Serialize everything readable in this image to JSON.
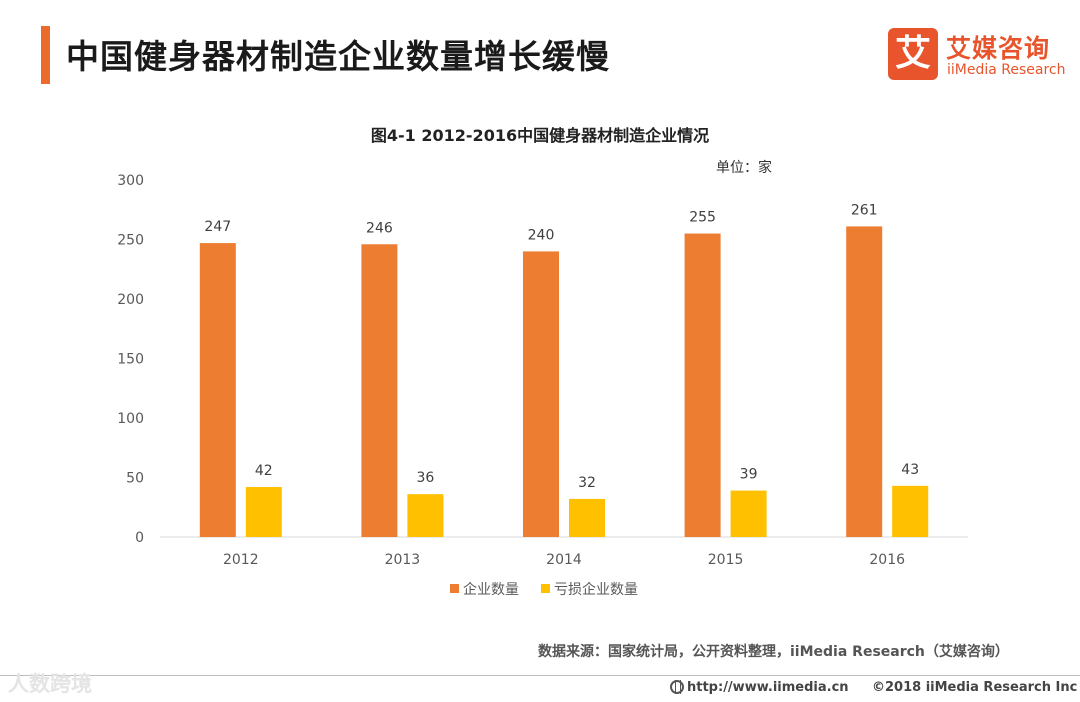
{
  "header": {
    "title": "中国健身器材制造企业数量增长缓慢"
  },
  "logo": {
    "glyph": "艾",
    "name_cn": "艾媒咨询",
    "name_en": "iiMedia Research"
  },
  "chart_data": {
    "type": "bar",
    "title": "图4-1 2012-2016中国健身器材制造企业情况",
    "unit": "单位：家",
    "categories": [
      "2012",
      "2013",
      "2014",
      "2015",
      "2016"
    ],
    "series": [
      {
        "name": "企业数量",
        "color": "#ed7d31",
        "values": [
          247,
          246,
          240,
          255,
          261
        ]
      },
      {
        "name": "亏损企业数量",
        "color": "#ffc000",
        "values": [
          42,
          36,
          32,
          39,
          43
        ]
      }
    ],
    "ylim": [
      0,
      300
    ],
    "yticks": [
      "0",
      "50",
      "100",
      "150",
      "200",
      "250",
      "300"
    ],
    "xlabel": "",
    "ylabel": "",
    "grid": false,
    "legend": "bottom"
  },
  "source": "数据来源：国家统计局，公开资料整理，iiMedia Research（艾媒咨询）",
  "footer": {
    "watermark": "人数跨境",
    "url": "http://www.iimedia.cn",
    "copyright": "©2018  iiMedia Research  Inc"
  }
}
